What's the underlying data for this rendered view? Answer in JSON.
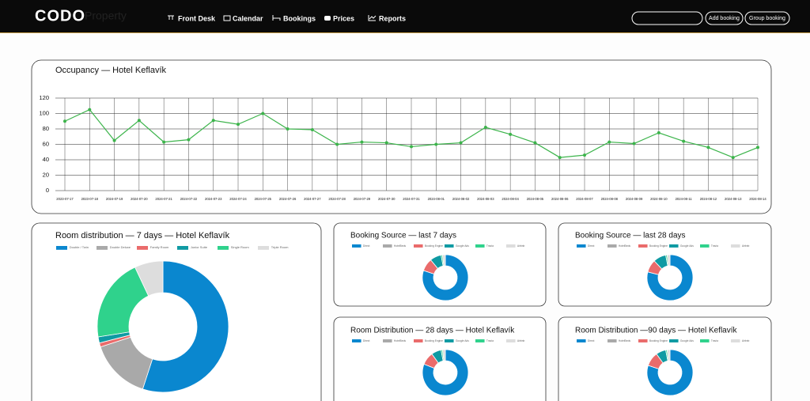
{
  "header": {
    "logo": "CODO",
    "logo_sub": "Property",
    "nav": [
      "Front Desk",
      "Calendar",
      "Bookings",
      "Prices",
      "Reports"
    ],
    "buttons": [
      "Add booking",
      "Group booking"
    ]
  },
  "chart_data": [
    {
      "type": "line",
      "title": "Occupancy — Hotel Keflavík",
      "categories": [
        "2023-07-17",
        "2023-07-18",
        "2024-07-19",
        "2024-07-20",
        "2024-07-21",
        "2024-07-22",
        "2024-07-23",
        "2024-07-24",
        "2024-07-25",
        "2024-07-26",
        "2024-07-27",
        "2024-07-28",
        "2024-07-29",
        "2024-07-30",
        "2024-07-31",
        "2024-08-01",
        "2024-08-02",
        "2024-08-03",
        "2024-08-04",
        "2024-08-05",
        "2024-08-06",
        "2024-08-07",
        "2024-08-08",
        "2024-08-09",
        "2024-08-10",
        "2024-08-11",
        "2024-08-12",
        "2024-08-13",
        "2024-08-14"
      ],
      "values": [
        90,
        105,
        65,
        91,
        63,
        66,
        91,
        86,
        100,
        80,
        79,
        60,
        63,
        62,
        57,
        60,
        62,
        82,
        73,
        62,
        43,
        46,
        63,
        61,
        75,
        64,
        56,
        43,
        56
      ],
      "color": "#3cb44b",
      "ylim": [
        0,
        120
      ],
      "yticks": [
        0,
        20,
        40,
        60,
        80,
        100,
        120
      ],
      "grid": true
    },
    {
      "type": "donut",
      "title": "Room distribution — 7 days — Hotel Keflavík",
      "categories": [
        "Double / Twin",
        "Double Deluxe",
        "Family Room",
        "Junior Suite",
        "Single Room",
        "Triple Room"
      ],
      "values": [
        55,
        15,
        1,
        1.5,
        20.5,
        7
      ],
      "colors": [
        "#0a87cf",
        "#a9a9a9",
        "#ea6b6b",
        "#0f9aa3",
        "#2fd28c",
        "#dddddd"
      ]
    },
    {
      "type": "donut",
      "title": "Booking Source — last 7 days",
      "categories": [
        "Direct",
        "HotelBeds",
        "Booking Engine",
        "Google Ads",
        "Travia",
        "Airbnb"
      ],
      "values": [
        80,
        0,
        9,
        8,
        1,
        2
      ],
      "colors": [
        "#0a87cf",
        "#a9a9a9",
        "#ea6b6b",
        "#0f9aa3",
        "#2fd28c",
        "#dddddd"
      ]
    },
    {
      "type": "donut",
      "title": "Booking Source — last 28 days",
      "categories": [
        "Direct",
        "HotelBeds",
        "Booking Engine",
        "Google Ads",
        "Travia",
        "Airbnb"
      ],
      "values": [
        79,
        0,
        9,
        9,
        1,
        2
      ],
      "colors": [
        "#0a87cf",
        "#a9a9a9",
        "#ea6b6b",
        "#0f9aa3",
        "#2fd28c",
        "#dddddd"
      ]
    },
    {
      "type": "donut",
      "title": "Room Distribution — 28 days — Hotel Keflavík",
      "categories": [
        "Direct",
        "HotelBeds",
        "Booking Engine",
        "Google Ads",
        "Travia",
        "Airbnb"
      ],
      "values": [
        81,
        0,
        9,
        7,
        1,
        2
      ],
      "colors": [
        "#0a87cf",
        "#a9a9a9",
        "#ea6b6b",
        "#0f9aa3",
        "#2fd28c",
        "#dddddd"
      ]
    },
    {
      "type": "donut",
      "title": "Room Distribution —90 days — Hotel Keflavík",
      "categories": [
        "Direct",
        "HotelBeds",
        "Booking Engine",
        "Google Ads",
        "Travia",
        "Airbnb"
      ],
      "values": [
        80,
        0,
        10,
        7,
        1,
        2
      ],
      "colors": [
        "#0a87cf",
        "#a9a9a9",
        "#ea6b6b",
        "#0f9aa3",
        "#2fd28c",
        "#dddddd"
      ]
    }
  ]
}
